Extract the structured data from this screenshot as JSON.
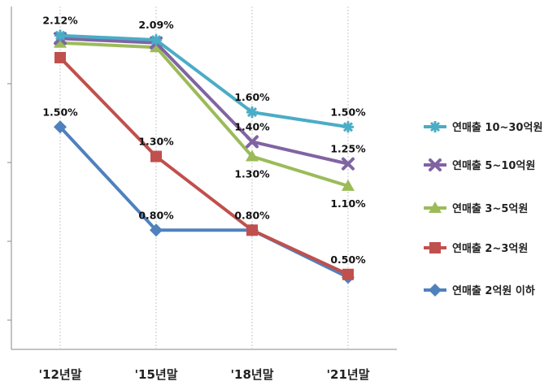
{
  "chart_data": {
    "type": "line",
    "categories": [
      "'12년말",
      "'15년말",
      "'18년말",
      "'21년말"
    ],
    "ylim": [
      0,
      2.25
    ],
    "grid": {
      "vertical": true,
      "horizontal": false
    },
    "legend_position": "right",
    "series": [
      {
        "name": "연매출 10~30억원",
        "color": "#4BACC6",
        "marker": "star",
        "values": [
          2.12,
          2.09,
          1.6,
          1.5
        ],
        "labels": [
          "2.12%",
          "2.09%",
          "1.60%",
          "1.50%"
        ],
        "label_pos": [
          "above",
          "above",
          "above",
          "above"
        ]
      },
      {
        "name": "연매출 5~10억원",
        "color": "#8064A2",
        "marker": "x",
        "values": [
          2.1,
          2.07,
          1.4,
          1.25
        ],
        "labels": [
          "",
          "",
          "1.40%",
          "1.25%"
        ],
        "label_pos": [
          "above",
          "above",
          "above",
          "above"
        ]
      },
      {
        "name": "연매출 3~5억원",
        "color": "#9BBB59",
        "marker": "triangle",
        "values": [
          2.07,
          2.04,
          1.3,
          1.1
        ],
        "labels": [
          "",
          "",
          "1.30%",
          "1.10%"
        ],
        "label_pos": [
          "above",
          "above",
          "below",
          "below"
        ]
      },
      {
        "name": "연매출 2~3억원",
        "color": "#C0504D",
        "marker": "square",
        "values": [
          1.97,
          1.3,
          0.8,
          0.5
        ],
        "labels": [
          "",
          "1.30%",
          "0.80%",
          "0.50%"
        ],
        "label_pos": [
          "above",
          "above",
          "above",
          "above"
        ]
      },
      {
        "name": "연매출 2억원 이하",
        "color": "#4F81BD",
        "marker": "diamond",
        "values": [
          1.5,
          0.8,
          0.8,
          0.48
        ],
        "labels": [
          "1.50%",
          "0.80%",
          "",
          ""
        ],
        "label_pos": [
          "above",
          "above",
          "above",
          "above"
        ]
      }
    ]
  }
}
